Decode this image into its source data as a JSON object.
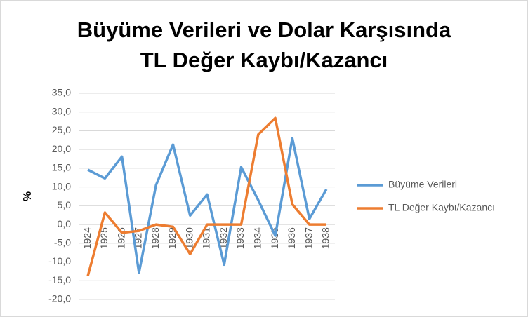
{
  "chart_data": {
    "type": "line",
    "title": [
      "Büyüme Verileri ve Dolar Karşısında",
      "TL Değer Kaybı/Kazancı"
    ],
    "y_label": "%",
    "categories": [
      "1924",
      "1925",
      "1926",
      "1927",
      "1928",
      "1929",
      "1930",
      "1931",
      "1932",
      "1933",
      "1934",
      "1935",
      "1936",
      "1937",
      "1938"
    ],
    "series": [
      {
        "name": "Büyüme Verileri",
        "color": "#5b9bd5",
        "values": [
          14.6,
          12.3,
          18.1,
          -12.9,
          10.5,
          21.3,
          2.4,
          8.0,
          -10.7,
          15.3,
          6.5,
          -3.0,
          23.0,
          1.5,
          9.4
        ]
      },
      {
        "name": "TL Değer Kaybı/Kazancı",
        "color": "#ed7d31",
        "values": [
          -13.7,
          3.2,
          -2.2,
          -1.7,
          0,
          -0.6,
          -7.9,
          0,
          0,
          0,
          24.0,
          28.4,
          5.4,
          0,
          0
        ]
      }
    ],
    "ylim": [
      -20,
      35
    ],
    "yticks": [
      {
        "value": -20,
        "label": "-20,0"
      },
      {
        "value": -15,
        "label": "-15,0"
      },
      {
        "value": -10,
        "label": "-10,0"
      },
      {
        "value": -5,
        "label": "-5,0"
      },
      {
        "value": 0,
        "label": "0,0"
      },
      {
        "value": 5,
        "label": "5,0"
      },
      {
        "value": 10,
        "label": "10,0"
      },
      {
        "value": 15,
        "label": "15,0"
      },
      {
        "value": 20,
        "label": "20,0"
      },
      {
        "value": 25,
        "label": "25,0"
      },
      {
        "value": 30,
        "label": "30,0"
      },
      {
        "value": 35,
        "label": "35,0"
      }
    ],
    "grid": true,
    "legend": "right"
  }
}
